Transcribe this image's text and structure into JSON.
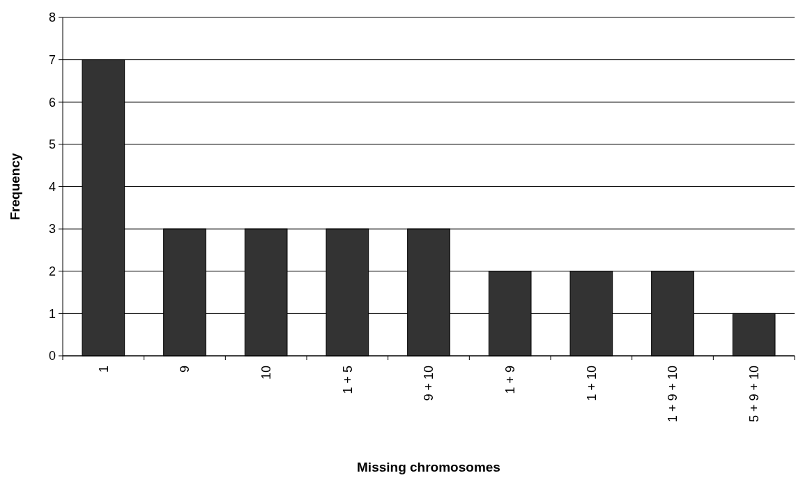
{
  "chart_data": {
    "type": "bar",
    "xlabel": "Missing chromosomes",
    "ylabel": "Frequency",
    "categories": [
      "1",
      "9",
      "10",
      "1 + 5",
      "9 + 10",
      "1 + 9",
      "1 + 10",
      "1 + 9 + 10",
      "5 + 9 + 10"
    ],
    "values": [
      7,
      3,
      3,
      3,
      3,
      2,
      2,
      2,
      1
    ],
    "color": "#333333",
    "ylim": [
      0,
      8
    ],
    "yticks": [
      0,
      1,
      2,
      3,
      4,
      5,
      6,
      7,
      8
    ],
    "grid": "y"
  }
}
